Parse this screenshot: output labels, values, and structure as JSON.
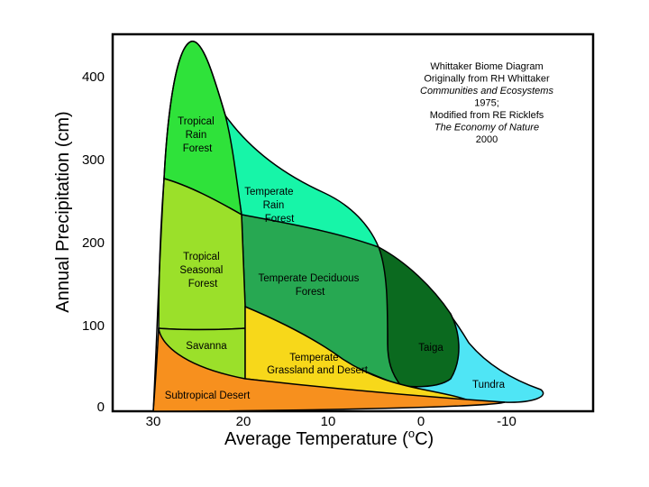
{
  "diagram": {
    "title_lines": [
      {
        "text": "Whittaker Biome Diagram",
        "italic": false
      },
      {
        "text": "Originally from RH Whittaker",
        "italic": false
      },
      {
        "text": "Communities and Ecosystems",
        "italic": true
      },
      {
        "text": "1975;",
        "italic": false
      },
      {
        "text": "Modified from RE Ricklefs",
        "italic": false
      },
      {
        "text": "The Economy of Nature",
        "italic": true
      },
      {
        "text": "2000",
        "italic": false
      }
    ],
    "y_axis": {
      "label": "Annual Precipitation (cm)",
      "ticks": [
        "400",
        "300",
        "200",
        "100",
        "0"
      ]
    },
    "x_axis": {
      "label": "Average Temperature (",
      "label_unit": "C)",
      "label_degree": "o",
      "ticks": [
        "30",
        "20",
        "10",
        "0",
        "-10"
      ]
    },
    "biomes": {
      "tropical_rain_forest": {
        "lines": [
          "Tropical",
          "Rain",
          "Forest"
        ],
        "color": "#2fe23a"
      },
      "temperate_rain_forest": {
        "lines": [
          "Temperate",
          "Rain",
          "Forest"
        ],
        "color": "#17f5a8"
      },
      "tropical_seasonal_forest": {
        "lines": [
          "Tropical",
          "Seasonal",
          "Forest"
        ],
        "color": "#9be02a"
      },
      "temperate_deciduous_forest": {
        "lines": [
          "Temperate Deciduous",
          "Forest"
        ],
        "color": "#27a852"
      },
      "taiga": {
        "lines": [
          "Taiga"
        ],
        "color": "#0b6a1f"
      },
      "savanna": {
        "lines": [
          "Savanna"
        ],
        "color": "#9be02a"
      },
      "temperate_grassland_desert": {
        "lines": [
          "Temperate",
          "Grassland and Desert"
        ],
        "color": "#f7d81a"
      },
      "tundra": {
        "lines": [
          "Tundra"
        ],
        "color": "#4fe5f5"
      },
      "subtropical_desert": {
        "lines": [
          "Subtropical Desert"
        ],
        "color": "#f7901e"
      }
    }
  }
}
